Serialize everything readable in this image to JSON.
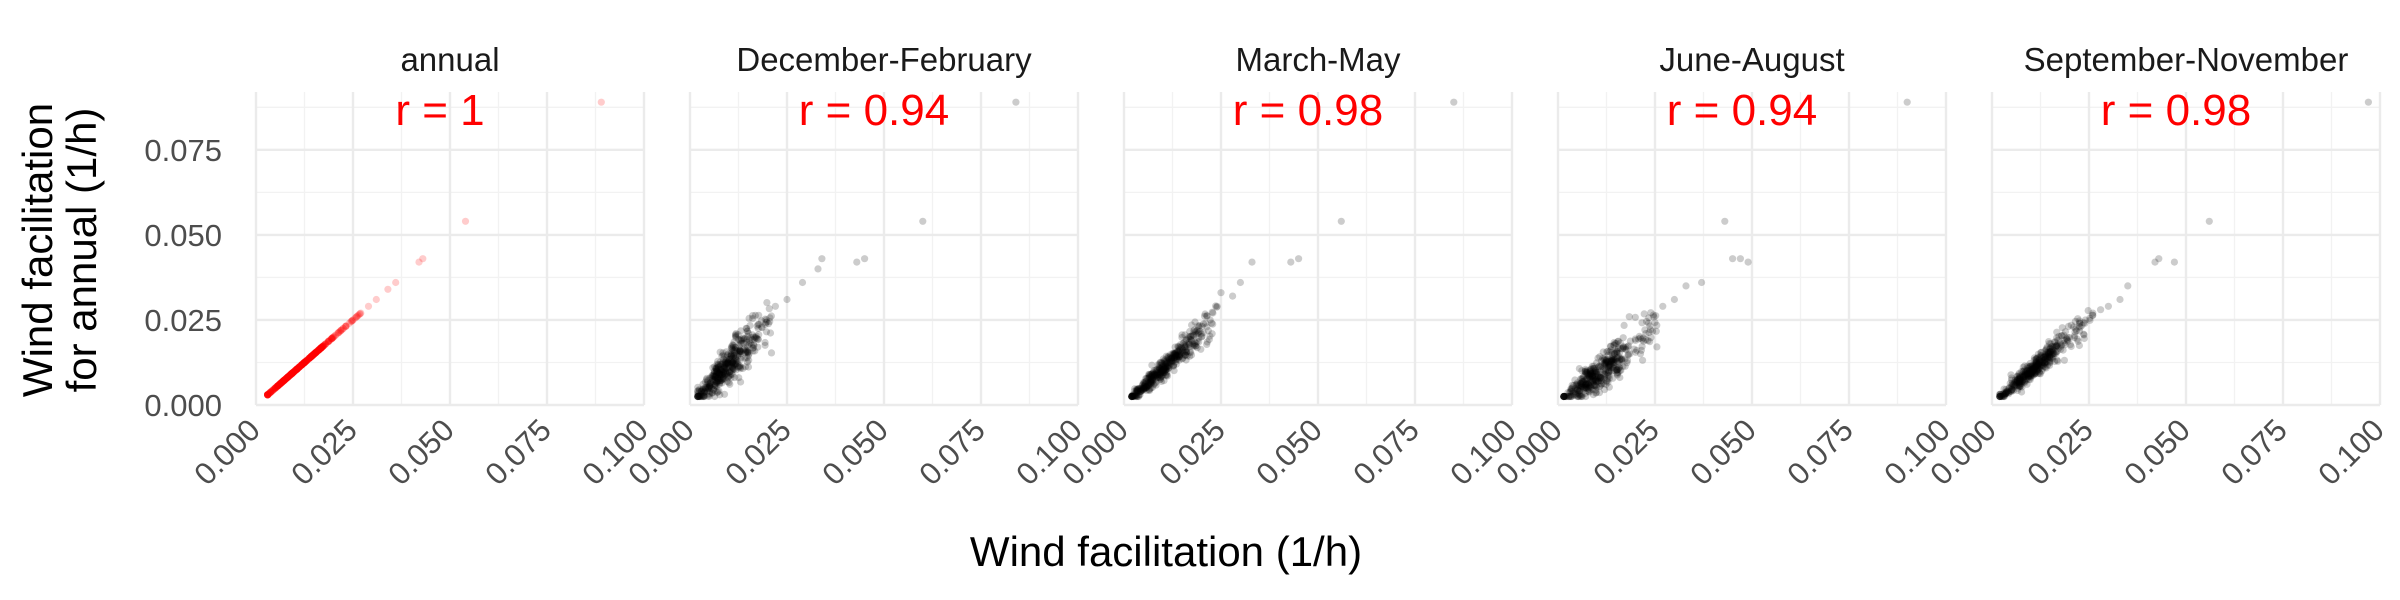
{
  "chart_data": {
    "type": "scatter",
    "xlabel": "Wind facilitation (1/h)",
    "ylabel": [
      "Wind facilitation",
      "for annual (1/h)"
    ],
    "xlim": [
      0,
      0.1
    ],
    "ylim": [
      0,
      0.092
    ],
    "x_ticks": [
      "0.000",
      "0.025",
      "0.050",
      "0.075",
      "0.100"
    ],
    "y_ticks": [
      "0.000",
      "0.025",
      "0.050",
      "0.075"
    ],
    "grid": true,
    "point_alpha": 0.2,
    "colors": {
      "annual_points": "#ff0000",
      "season_points": "#000000",
      "r_text": "#ff0000"
    },
    "panels": [
      {
        "title": "annual",
        "r_label": "r = 1",
        "point_color": "#ff0000",
        "outliers": [
          [
            0.089,
            0.089
          ],
          [
            0.054,
            0.054
          ],
          [
            0.043,
            0.043
          ],
          [
            0.042,
            0.042
          ],
          [
            0.036,
            0.036
          ],
          [
            0.034,
            0.034
          ],
          [
            0.031,
            0.031
          ],
          [
            0.029,
            0.029
          ]
        ],
        "cluster": {
          "count": 420,
          "x_range": [
            0.003,
            0.027
          ],
          "x_center": 0.011,
          "slope": 1.0,
          "scatter": 0.0
        }
      },
      {
        "title": "December-February",
        "r_label": "r = 0.94",
        "point_color": "#000000",
        "outliers": [
          [
            0.084,
            0.089
          ],
          [
            0.06,
            0.054
          ],
          [
            0.045,
            0.043
          ],
          [
            0.043,
            0.042
          ],
          [
            0.034,
            0.043
          ],
          [
            0.033,
            0.04
          ],
          [
            0.029,
            0.036
          ],
          [
            0.025,
            0.031
          ],
          [
            0.022,
            0.029
          ]
        ],
        "cluster": {
          "count": 420,
          "x_range": [
            0.002,
            0.021
          ],
          "x_center": 0.009,
          "slope": 1.22,
          "scatter": 0.0028
        }
      },
      {
        "title": "March-May",
        "r_label": "r = 0.98",
        "point_color": "#000000",
        "outliers": [
          [
            0.085,
            0.089
          ],
          [
            0.056,
            0.054
          ],
          [
            0.045,
            0.043
          ],
          [
            0.043,
            0.042
          ],
          [
            0.033,
            0.042
          ],
          [
            0.03,
            0.036
          ],
          [
            0.028,
            0.032
          ],
          [
            0.025,
            0.033
          ],
          [
            0.024,
            0.029
          ]
        ],
        "cluster": {
          "count": 420,
          "x_range": [
            0.002,
            0.024
          ],
          "x_center": 0.01,
          "slope": 1.08,
          "scatter": 0.0016
        }
      },
      {
        "title": "June-August",
        "r_label": "r = 0.94",
        "point_color": "#000000",
        "outliers": [
          [
            0.09,
            0.089
          ],
          [
            0.043,
            0.054
          ],
          [
            0.045,
            0.043
          ],
          [
            0.047,
            0.043
          ],
          [
            0.049,
            0.042
          ],
          [
            0.037,
            0.036
          ],
          [
            0.033,
            0.035
          ],
          [
            0.03,
            0.031
          ],
          [
            0.027,
            0.029
          ]
        ],
        "cluster": {
          "count": 420,
          "x_range": [
            0.0015,
            0.026
          ],
          "x_center": 0.01,
          "slope": 0.9,
          "scatter": 0.0028
        }
      },
      {
        "title": "September-November",
        "r_label": "r = 0.98",
        "point_color": "#000000",
        "outliers": [
          [
            0.097,
            0.089
          ],
          [
            0.056,
            0.054
          ],
          [
            0.043,
            0.043
          ],
          [
            0.042,
            0.042
          ],
          [
            0.047,
            0.042
          ],
          [
            0.035,
            0.035
          ],
          [
            0.033,
            0.031
          ],
          [
            0.03,
            0.029
          ],
          [
            0.028,
            0.028
          ]
        ],
        "cluster": {
          "count": 420,
          "x_range": [
            0.002,
            0.026
          ],
          "x_center": 0.01,
          "slope": 1.0,
          "scatter": 0.0016
        }
      }
    ]
  }
}
